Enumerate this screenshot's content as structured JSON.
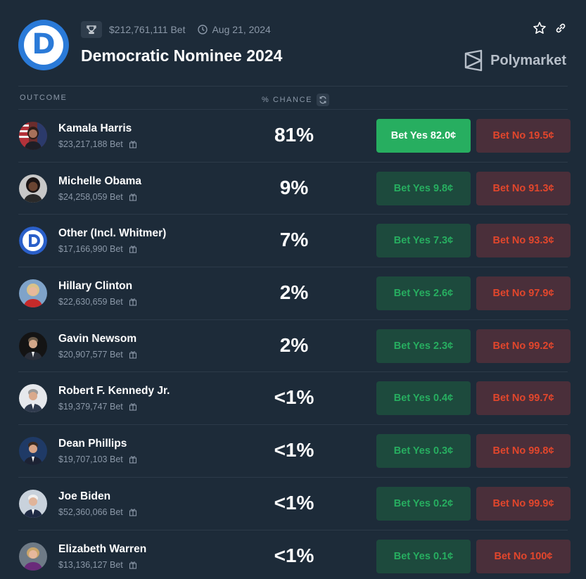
{
  "header": {
    "volume": "$212,761,111 Bet",
    "date": "Aug 21, 2024",
    "title": "Democratic Nominee 2024",
    "brand": "Polymarket",
    "logo_letter": "D"
  },
  "columns": {
    "outcome": "OUTCOME",
    "chance": "% CHANCE"
  },
  "colors": {
    "yes_active": "#27ae60",
    "yes": "#1d4a3d",
    "no": "#4a2f3a",
    "no_text": "#e2462c",
    "background": "#1d2b39"
  },
  "outcomes": [
    {
      "name": "Kamala Harris",
      "bet": "$23,217,188 Bet",
      "chance": "81%",
      "yes": "Bet Yes 82.0¢",
      "no": "Bet No 19.5¢"
    },
    {
      "name": "Michelle Obama",
      "bet": "$24,258,059 Bet",
      "chance": "9%",
      "yes": "Bet Yes 9.8¢",
      "no": "Bet No 91.3¢"
    },
    {
      "name": "Other (Incl. Whitmer)",
      "bet": "$17,166,990 Bet",
      "chance": "7%",
      "yes": "Bet Yes 7.3¢",
      "no": "Bet No 93.3¢"
    },
    {
      "name": "Hillary Clinton",
      "bet": "$22,630,659 Bet",
      "chance": "2%",
      "yes": "Bet Yes 2.6¢",
      "no": "Bet No 97.9¢"
    },
    {
      "name": "Gavin Newsom",
      "bet": "$20,907,577 Bet",
      "chance": "2%",
      "yes": "Bet Yes 2.3¢",
      "no": "Bet No 99.2¢"
    },
    {
      "name": "Robert F. Kennedy Jr.",
      "bet": "$19,379,747 Bet",
      "chance": "<1%",
      "yes": "Bet Yes 0.4¢",
      "no": "Bet No 99.7¢"
    },
    {
      "name": "Dean Phillips",
      "bet": "$19,707,103 Bet",
      "chance": "<1%",
      "yes": "Bet Yes 0.3¢",
      "no": "Bet No 99.8¢"
    },
    {
      "name": "Joe Biden",
      "bet": "$52,360,066 Bet",
      "chance": "<1%",
      "yes": "Bet Yes 0.2¢",
      "no": "Bet No 99.9¢"
    },
    {
      "name": "Elizabeth Warren",
      "bet": "$13,136,127 Bet",
      "chance": "<1%",
      "yes": "Bet Yes 0.1¢",
      "no": "Bet No 100¢"
    }
  ]
}
